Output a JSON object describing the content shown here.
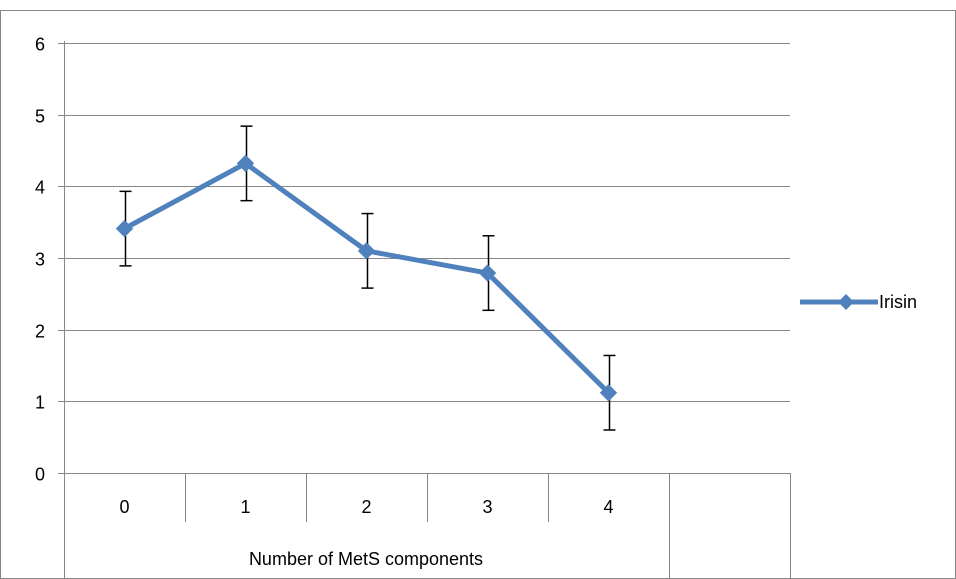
{
  "chart_data": {
    "type": "line",
    "title": "",
    "xlabel": "Number of MetS components",
    "ylabel": "",
    "categories": [
      "0",
      "1",
      "2",
      "3",
      "4"
    ],
    "ylim": [
      0,
      6
    ],
    "yticks": [
      "0",
      "1",
      "2",
      "3",
      "4",
      "5",
      "6"
    ],
    "grid": true,
    "legend_position": "right",
    "series": [
      {
        "name": "Irisin",
        "values": [
          3.41,
          4.32,
          3.1,
          2.79,
          1.12
        ],
        "error": [
          0.52,
          0.52,
          0.52,
          0.52,
          0.52
        ],
        "color": "#4f81bd",
        "marker": "diamond"
      }
    ],
    "error_bar_color": "#000000",
    "grid_color": "#878787"
  }
}
